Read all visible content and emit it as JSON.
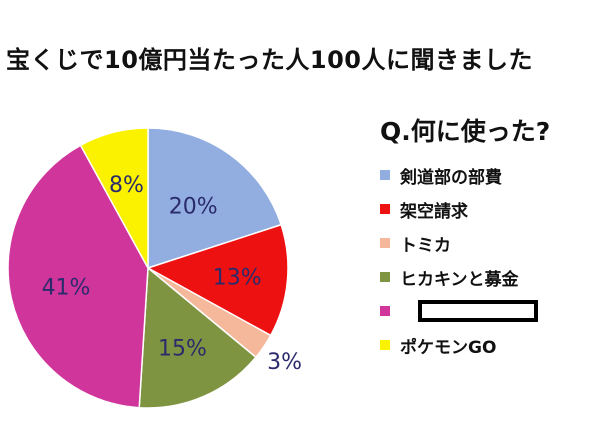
{
  "chart_data": {
    "type": "pie",
    "title": "宝くじで10億円当たった人100人に聞きました",
    "subtitle": "Q.何に使った?",
    "slices": [
      {
        "label": "剣道部の部費",
        "value": 20,
        "color": "#92aee0",
        "text": "20%"
      },
      {
        "label": "架空請求",
        "value": 13,
        "color": "#ee1111",
        "text": "13%"
      },
      {
        "label": "トミカ",
        "value": 3,
        "color": "#f5b89a",
        "text": "3%"
      },
      {
        "label": "ヒカキンと募金",
        "value": 15,
        "color": "#7f9440",
        "text": "15%"
      },
      {
        "label": "",
        "value": 41,
        "color": "#d0359c",
        "text": "41%"
      },
      {
        "label": "ポケモンGO",
        "value": 8,
        "color": "#fbf200",
        "text": "8%"
      }
    ],
    "legend_position": "right"
  }
}
